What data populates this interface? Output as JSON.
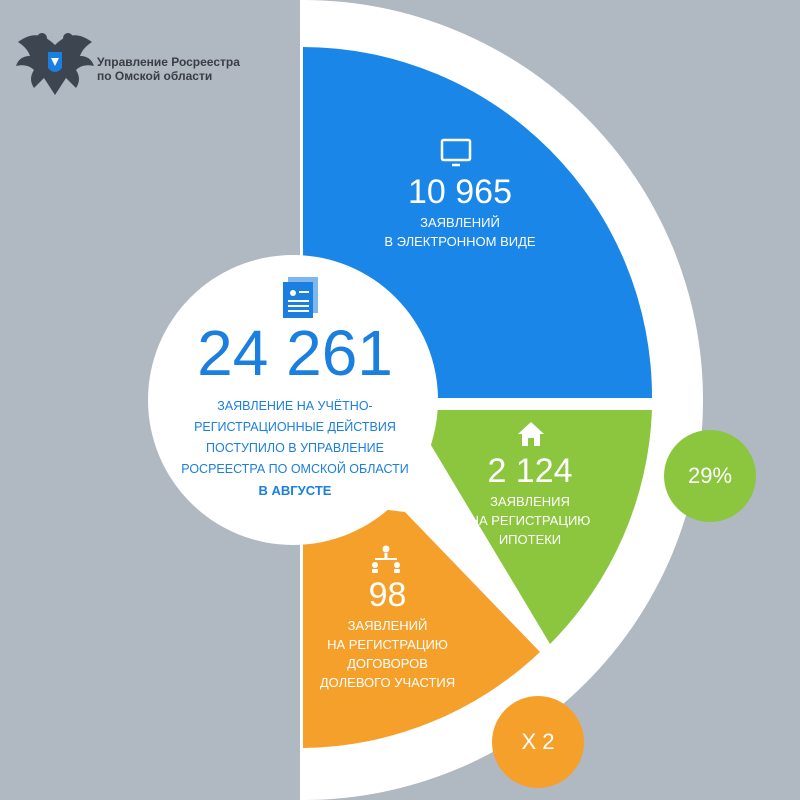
{
  "header": {
    "org_line1": "Управление Росреестра",
    "org_line2": "по Омской области",
    "logo_icon": "double-eagle-emblem-icon"
  },
  "center": {
    "value": "24 261",
    "desc_lines": [
      "ЗАЯВЛЕНИЕ НА УЧЁТНО-",
      "РЕГИСТРАЦИОННЫЕ ДЕЙСТВИЯ",
      "ПОСТУПИЛО В УПРАВЛЕНИЕ",
      "РОСРЕЕСТРА ПО ОМСКОЙ ОБЛАСТИ"
    ],
    "highlight": "В АВГУСТЕ",
    "icon": "documents-icon"
  },
  "segments": [
    {
      "value": "10 965",
      "lines": [
        "ЗАЯВЛЕНИЙ",
        "В ЭЛЕКТРОННОМ ВИДЕ"
      ],
      "icon": "monitor-icon",
      "color": "#1a86e8"
    },
    {
      "value": "2 124",
      "lines": [
        "ЗАЯВЛЕНИЯ",
        "НА РЕГИСТРАЦИЮ",
        "ИПОТЕКИ"
      ],
      "icon": "house-icon",
      "color": "#8cc63e"
    },
    {
      "value": "98",
      "lines": [
        "ЗАЯВЛЕНИЙ",
        "НА РЕГИСТРАЦИЮ",
        "ДОГОВОРОВ",
        "ДОЛЕВОГО УЧАСТИЯ"
      ],
      "icon": "people-network-icon",
      "color": "#f5a02a"
    }
  ],
  "badges": {
    "green": "29%",
    "orange": "Х 2"
  },
  "colors": {
    "background": "#b0b8c2",
    "blue": "#1a86e8",
    "green": "#8cc63e",
    "orange": "#f5a02a",
    "center_text": "#1b7fe0",
    "org_text": "#3a3e44"
  }
}
